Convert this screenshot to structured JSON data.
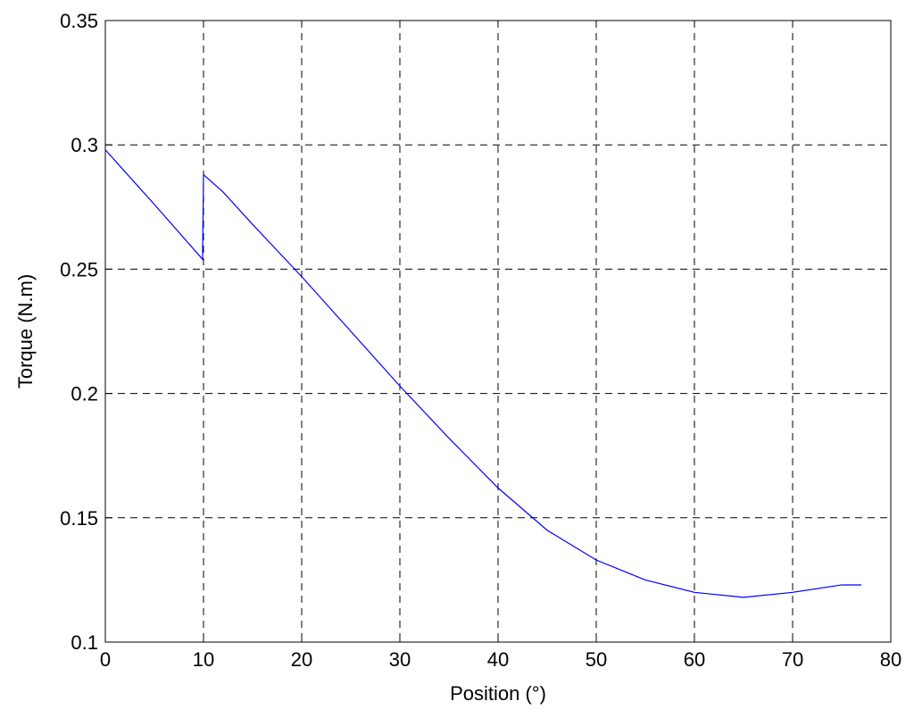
{
  "chart_data": {
    "type": "line",
    "xlabel": "Position (°)",
    "ylabel": "Torque (N.m)",
    "x": [
      0,
      5,
      9.9,
      10,
      12,
      15,
      20,
      25,
      30,
      35,
      40,
      45,
      50,
      55,
      60,
      65,
      70,
      75,
      77
    ],
    "series": [
      {
        "color": "#0000ff",
        "values": [
          0.298,
          0.276,
          0.254,
          0.288,
          0.281,
          0.268,
          0.247,
          0.225,
          0.203,
          0.182,
          0.162,
          0.145,
          0.133,
          0.125,
          0.12,
          0.118,
          0.12,
          0.123,
          0.123
        ]
      }
    ],
    "xlim": [
      0,
      80
    ],
    "xticks": [
      0,
      10,
      20,
      30,
      40,
      50,
      60,
      70,
      80
    ],
    "ylim": [
      0.1,
      0.35
    ],
    "yticks": [
      0.1,
      0.15,
      0.2,
      0.25,
      0.3,
      0.35
    ],
    "grid": true
  }
}
